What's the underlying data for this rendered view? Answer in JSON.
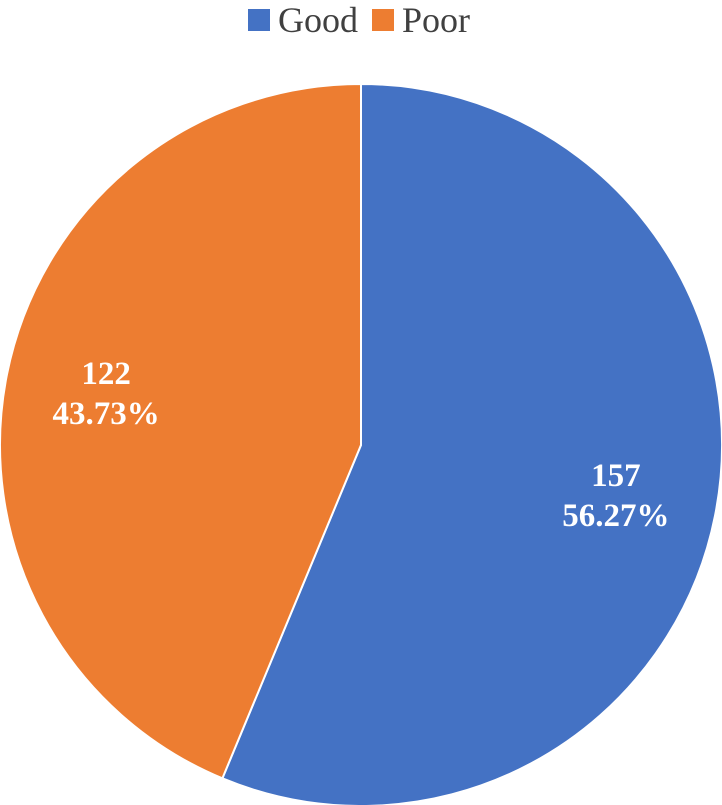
{
  "chart_data": {
    "type": "pie",
    "title": "",
    "legend_position": "top",
    "start_angle_deg": 0,
    "direction": "clockwise",
    "slices": [
      {
        "name": "Good",
        "value": 157,
        "percent_label": "56.27%",
        "color": "#4472C4"
      },
      {
        "name": "Poor",
        "value": 122,
        "percent_label": "43.73%",
        "color": "#ED7D31"
      }
    ]
  }
}
